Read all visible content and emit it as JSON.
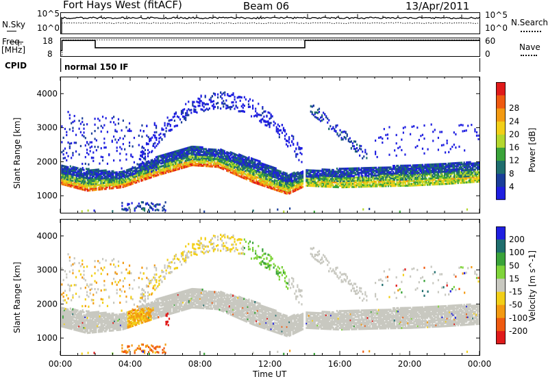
{
  "header": {
    "station": "Fort Hays West (fitACF)",
    "beam": "Beam 06",
    "date": "13/Apr/2011"
  },
  "sky_panel": {
    "left_label": "N.Sky",
    "right_label": "N.Search",
    "left_ticks": [
      "10^5",
      "10^0"
    ],
    "right_ticks": [
      "10^5",
      "10^0"
    ]
  },
  "freq_panel": {
    "left_label_line1": "Freq.",
    "left_label_line2": "[MHz]",
    "right_label": "Nave",
    "left_ticks": [
      "18",
      "8"
    ],
    "right_ticks": [
      "60",
      "0"
    ]
  },
  "cpid": {
    "label": "CPID",
    "value": "normal 150 IF"
  },
  "colors": {
    "power": [
      "#1f1fe0",
      "#1a3e9a",
      "#1f6e6e",
      "#3aa33a",
      "#b4d72e",
      "#f2cf18",
      "#f39a12",
      "#ef5a10",
      "#e01a1a"
    ],
    "velocity": [
      "#1f1fe0",
      "#1f6e6e",
      "#3aa33a",
      "#7fd43a",
      "#c8c8c0",
      "#f2cf18",
      "#f39a12",
      "#ef5a10",
      "#e01a1a"
    ]
  },
  "chart_data": [
    {
      "type": "heatmap",
      "panel": "power",
      "ylabel": "Slant Range [km]",
      "xlabel": "Time UT",
      "ylim": [
        500,
        4500
      ],
      "yticks": [
        "1000",
        "2000",
        "3000",
        "4000"
      ],
      "xticks": [
        "00:00",
        "04:00",
        "08:00",
        "12:00",
        "16:00",
        "20:00",
        "00:00"
      ],
      "colorbar_label": "Power [dB]",
      "colorbar_ticks": [
        "4",
        "8",
        "12",
        "16",
        "20",
        "24",
        "28"
      ],
      "main_band_lower_km": [
        [
          0,
          1350
        ],
        [
          1.5,
          1150
        ],
        [
          3.5,
          1250
        ],
        [
          5.5,
          1600
        ],
        [
          7.5,
          1900
        ],
        [
          9,
          1850
        ],
        [
          11,
          1400
        ],
        [
          13,
          1050
        ],
        [
          14,
          1300
        ],
        [
          16,
          1250
        ],
        [
          18,
          1280
        ],
        [
          20,
          1300
        ],
        [
          22,
          1350
        ],
        [
          24,
          1420
        ]
      ],
      "main_band_upper_km": [
        [
          0,
          1900
        ],
        [
          1.5,
          1800
        ],
        [
          3.5,
          1700
        ],
        [
          5.5,
          2150
        ],
        [
          7.5,
          2450
        ],
        [
          9,
          2380
        ],
        [
          11,
          2100
        ],
        [
          13,
          1650
        ],
        [
          14,
          1750
        ],
        [
          16,
          1800
        ],
        [
          18,
          1850
        ],
        [
          20,
          1900
        ],
        [
          22,
          1950
        ],
        [
          24,
          2000
        ]
      ]
    },
    {
      "type": "heatmap",
      "panel": "velocity",
      "ylabel": "Slant Range [km]",
      "xlabel": "Time UT",
      "ylim": [
        500,
        4500
      ],
      "yticks": [
        "1000",
        "2000",
        "3000",
        "4000"
      ],
      "xticks": [
        "00:00",
        "04:00",
        "08:00",
        "12:00",
        "16:00",
        "20:00",
        "00:00"
      ],
      "colorbar_label": "Velocity [m s^-1]",
      "colorbar_ticks": [
        "200",
        "100",
        "50",
        "15",
        "-15",
        "-50",
        "-100",
        "-200"
      ]
    },
    {
      "type": "line",
      "panel": "frequency",
      "ylabel": "Freq. [MHz]",
      "series": [
        {
          "name": "Freq.",
          "points": [
            [
              0,
              11
            ],
            [
              0.1,
              11
            ],
            [
              0.1,
              16.5
            ],
            [
              2,
              16.5
            ],
            [
              2,
              12.5
            ],
            [
              14,
              12.5
            ],
            [
              14,
              16.5
            ],
            [
              24,
              16.5
            ]
          ]
        },
        {
          "name": "Nave",
          "points": [
            [
              0,
              0
            ],
            [
              0.1,
              0
            ],
            [
              0.1,
              53
            ],
            [
              24,
              53
            ]
          ]
        }
      ]
    }
  ]
}
